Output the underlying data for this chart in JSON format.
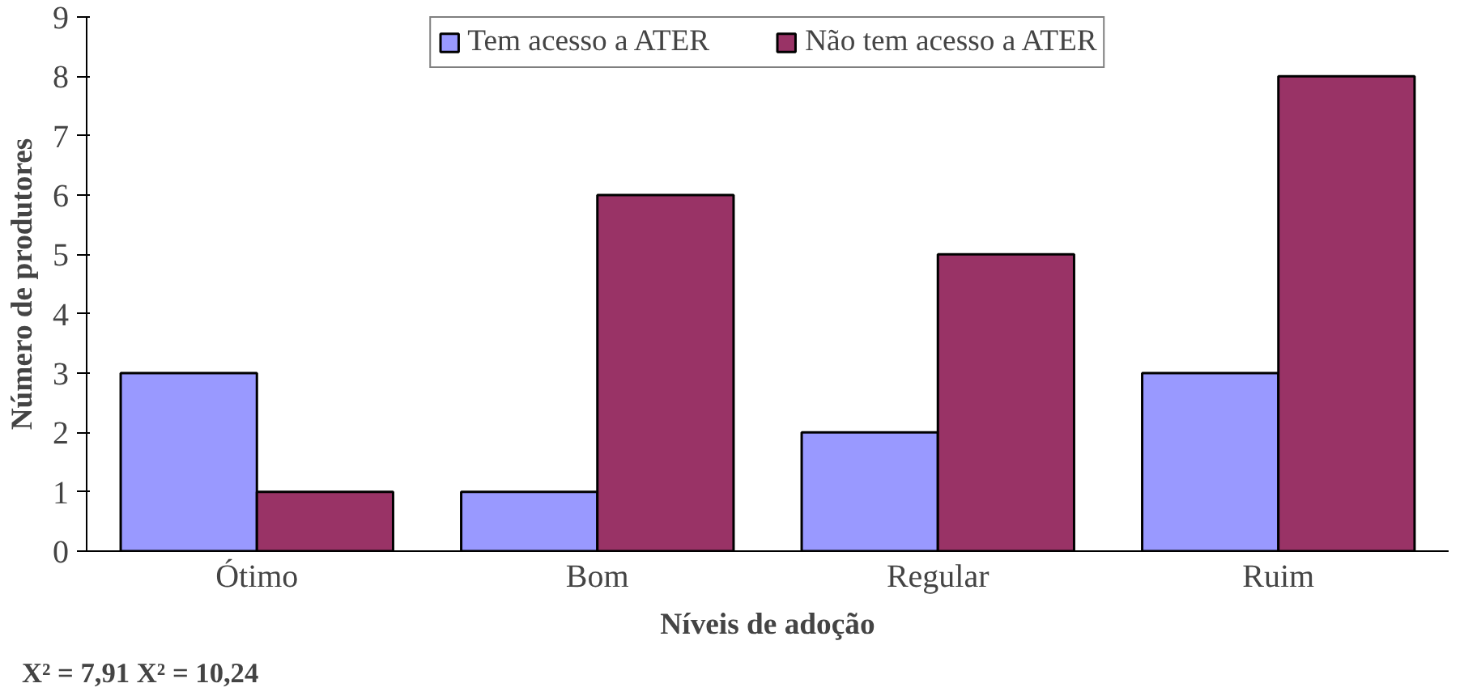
{
  "chart_data": {
    "type": "bar",
    "xlabel": "Níveis de adoção",
    "ylabel": "Número de produtores",
    "categories": [
      "Ótimo",
      "Bom",
      "Regular",
      "Ruim"
    ],
    "series": [
      {
        "name": "Tem acesso a ATER",
        "color": "#9999ff",
        "values": [
          3,
          1,
          2,
          3
        ]
      },
      {
        "name": "Não tem acesso a ATER",
        "color": "#993366",
        "values": [
          1,
          6,
          5,
          8
        ]
      }
    ],
    "ylim": [
      0,
      9
    ],
    "yticks": [
      0,
      1,
      2,
      3,
      4,
      5,
      6,
      7,
      8,
      9
    ],
    "grid": false,
    "legend": "top",
    "annotations": [
      "X² = 7,91 X² = 10,24"
    ]
  }
}
